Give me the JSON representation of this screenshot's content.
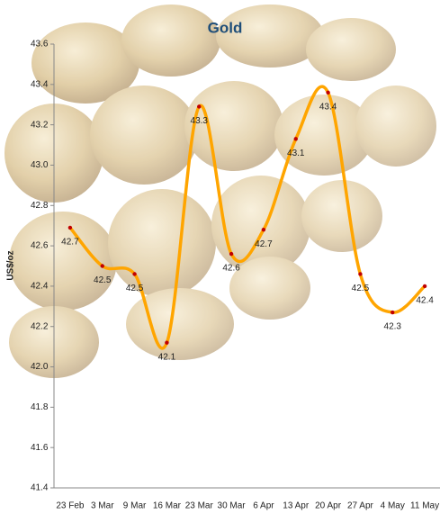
{
  "chart_data": {
    "type": "line",
    "title": "Gold",
    "y_label": "US$/oz",
    "categories": [
      "23 Feb",
      "3 Mar",
      "9 Mar",
      "16 Mar",
      "23 Mar",
      "30 Mar",
      "6 Apr",
      "13 Apr",
      "20 Apr",
      "27 Apr",
      "4 May",
      "11 May"
    ],
    "series": [
      {
        "name": "Gold",
        "color": "#FFA500",
        "values": [
          42.69,
          42.5,
          42.46,
          42.12,
          43.29,
          42.56,
          42.68,
          43.13,
          43.36,
          42.46,
          42.27,
          42.4
        ],
        "value_labels": [
          "42.7",
          "42.5",
          "42.5",
          "42.1",
          "43.3",
          "42.6",
          "42.7",
          "43.1",
          "43.4",
          "42.5",
          "42.3",
          "42.4"
        ]
      }
    ],
    "ylim": [
      41.4,
      43.6
    ],
    "yticks": [
      41.4,
      41.6,
      41.8,
      {
        "value": 42,
        "label": "42.0"
      },
      42.2,
      42.4,
      42.6,
      42.8,
      {
        "value": 43,
        "label": "43.0"
      },
      43.2,
      43.4,
      43.6
    ],
    "smooth": true,
    "marker_color": "#c00000"
  }
}
